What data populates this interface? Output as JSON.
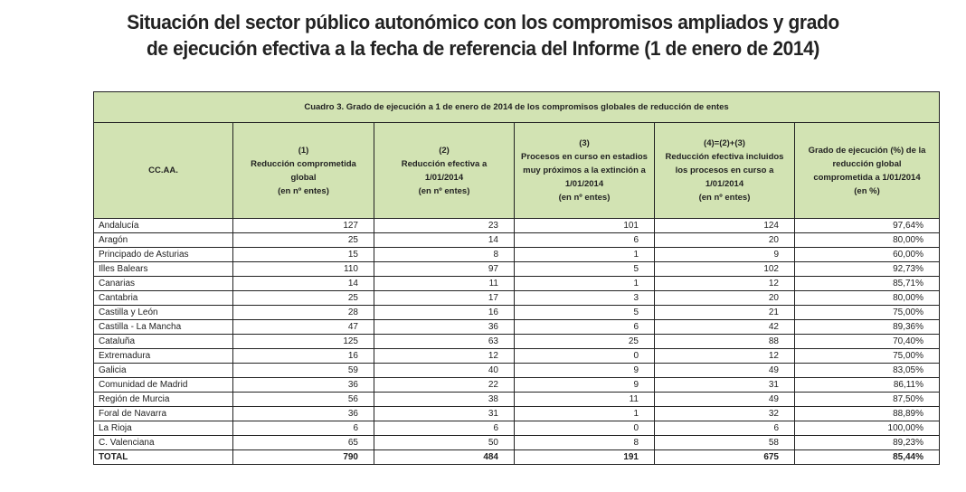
{
  "page_title": {
    "line1": "Situación del sector público autonómico con los compromisos ampliados y grado",
    "line2": "de ejecución efectiva a la fecha de referencia del Informe (1 de enero de 2014)"
  },
  "table": {
    "caption": "Cuadro 3. Grado de ejecución a 1 de enero de 2014 de los compromisos globales de reducción de entes",
    "headers": [
      {
        "lines": [
          "CC.AA."
        ]
      },
      {
        "lines": [
          "(1)",
          "Reducción comprometida",
          "global",
          "(en nº entes)"
        ]
      },
      {
        "lines": [
          "(2)",
          "Reducción efectiva a",
          "1/01/2014",
          "(en nº entes)"
        ]
      },
      {
        "lines": [
          "(3)",
          "Procesos en curso en estadios",
          "muy próximos a la extinción a",
          "1/01/2014",
          "(en nº entes)"
        ]
      },
      {
        "lines": [
          "(4)=(2)+(3)",
          "Reducción efectiva incluidos",
          "los procesos en curso a",
          "1/01/2014",
          "(en nº entes)"
        ]
      },
      {
        "lines": [
          "Grado de ejecución (%) de la",
          "reducción global",
          "comprometida a 1/01/2014",
          "(en %)"
        ]
      }
    ],
    "rows": [
      [
        "Andalucía",
        "127",
        "23",
        "101",
        "124",
        "97,64%"
      ],
      [
        "Aragón",
        "25",
        "14",
        "6",
        "20",
        "80,00%"
      ],
      [
        "Principado de Asturias",
        "15",
        "8",
        "1",
        "9",
        "60,00%"
      ],
      [
        "Illes Balears",
        "110",
        "97",
        "5",
        "102",
        "92,73%"
      ],
      [
        "Canarias",
        "14",
        "11",
        "1",
        "12",
        "85,71%"
      ],
      [
        "Cantabria",
        "25",
        "17",
        "3",
        "20",
        "80,00%"
      ],
      [
        "Castilla y León",
        "28",
        "16",
        "5",
        "21",
        "75,00%"
      ],
      [
        "Castilla - La Mancha",
        "47",
        "36",
        "6",
        "42",
        "89,36%"
      ],
      [
        "Cataluña",
        "125",
        "63",
        "25",
        "88",
        "70,40%"
      ],
      [
        "Extremadura",
        "16",
        "12",
        "0",
        "12",
        "75,00%"
      ],
      [
        "Galicia",
        "59",
        "40",
        "9",
        "49",
        "83,05%"
      ],
      [
        "Comunidad de Madrid",
        "36",
        "22",
        "9",
        "31",
        "86,11%"
      ],
      [
        "Región de Murcia",
        "56",
        "38",
        "11",
        "49",
        "87,50%"
      ],
      [
        "Foral de Navarra",
        "36",
        "31",
        "1",
        "32",
        "88,89%"
      ],
      [
        "La Rioja",
        "6",
        "6",
        "0",
        "6",
        "100,00%"
      ],
      [
        "C. Valenciana",
        "65",
        "50",
        "8",
        "58",
        "89,23%"
      ]
    ],
    "total": [
      "TOTAL",
      "790",
      "484",
      "191",
      "675",
      "85,44%"
    ]
  },
  "colors": {
    "header_bg": "#d2e3b3",
    "border": "#222222",
    "text": "#222222"
  }
}
